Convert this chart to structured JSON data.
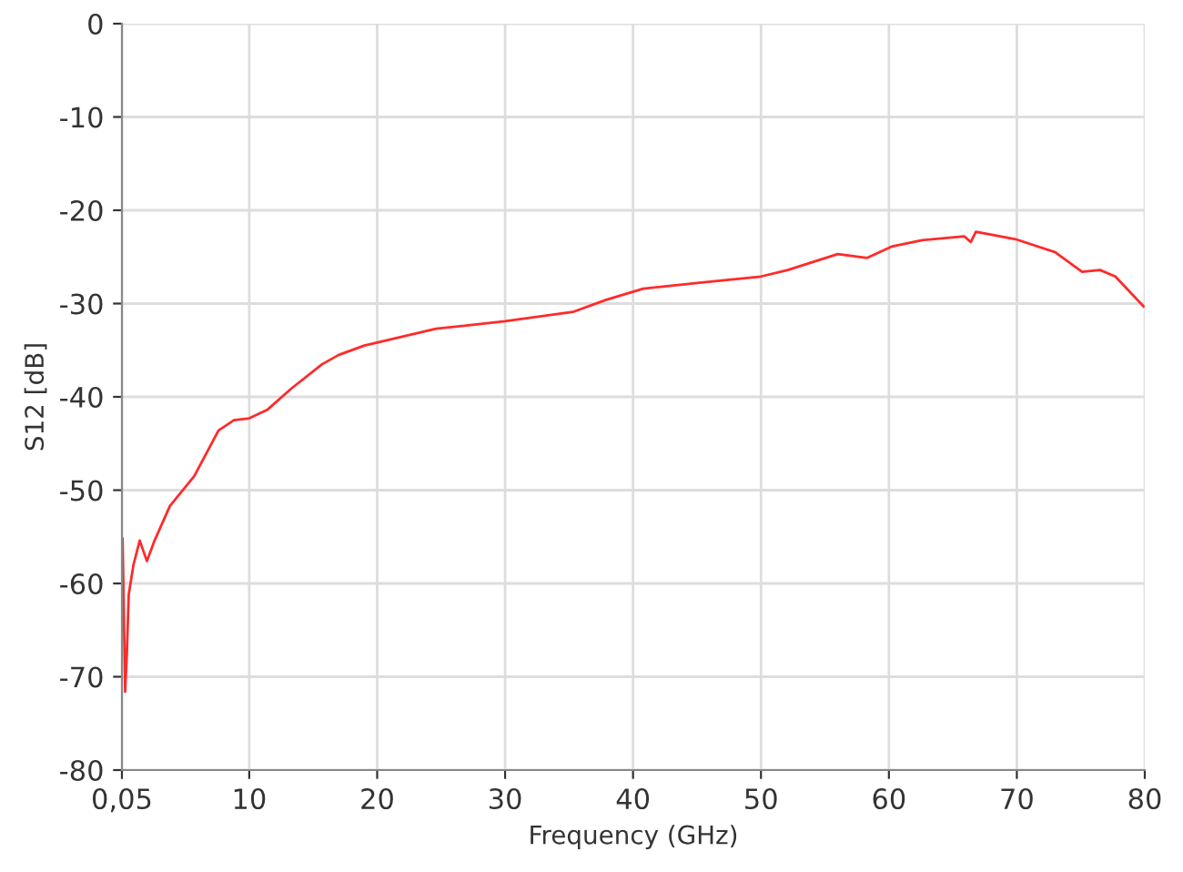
{
  "chart_data": {
    "type": "line",
    "xlabel": "Frequency (GHz)",
    "ylabel": "S12 [dB]",
    "x": [
      0.1,
      0.2,
      0.3,
      0.44,
      0.58,
      0.95,
      1.44,
      2.0,
      2.6,
      3.8,
      5.7,
      7.6,
      8.8,
      10.0,
      11.4,
      13.3,
      15.7,
      17,
      19,
      24.6,
      30,
      35.3,
      37.9,
      40.8,
      45,
      50,
      52.1,
      56,
      58.3,
      60.2,
      62.6,
      65.9,
      66.4,
      66.8,
      69.9,
      73,
      75.1,
      76.5,
      77.7,
      79.9
    ],
    "series": [
      {
        "color": "#ff2a2a",
        "values": [
          -55.2,
          -63.2,
          -71.6,
          -67.3,
          -61.2,
          -58,
          -55.4,
          -57.6,
          -55.4,
          -51.7,
          -48.5,
          -43.6,
          -42.5,
          -42.3,
          -41.4,
          -39.1,
          -36.5,
          -35.5,
          -34.5,
          -32.7,
          -31.9,
          -30.9,
          -29.6,
          -28.4,
          -27.8,
          -27.1,
          -26.4,
          -24.7,
          -25.1,
          -23.9,
          -23.2,
          -22.8,
          -23.4,
          -22.3,
          -23.1,
          -24.5,
          -26.6,
          -26.4,
          -27.1,
          -30.3
        ]
      }
    ],
    "xlim": [
      0.05,
      80
    ],
    "xticks": [
      {
        "value": 0.05,
        "label": "0,05"
      },
      10,
      20,
      30,
      40,
      50,
      60,
      70,
      80
    ],
    "ylim": [
      -80,
      0
    ],
    "yticks": [
      -80,
      -70,
      -60,
      -50,
      -40,
      -30,
      -20,
      -10,
      0
    ],
    "grid": true,
    "legend": false
  }
}
